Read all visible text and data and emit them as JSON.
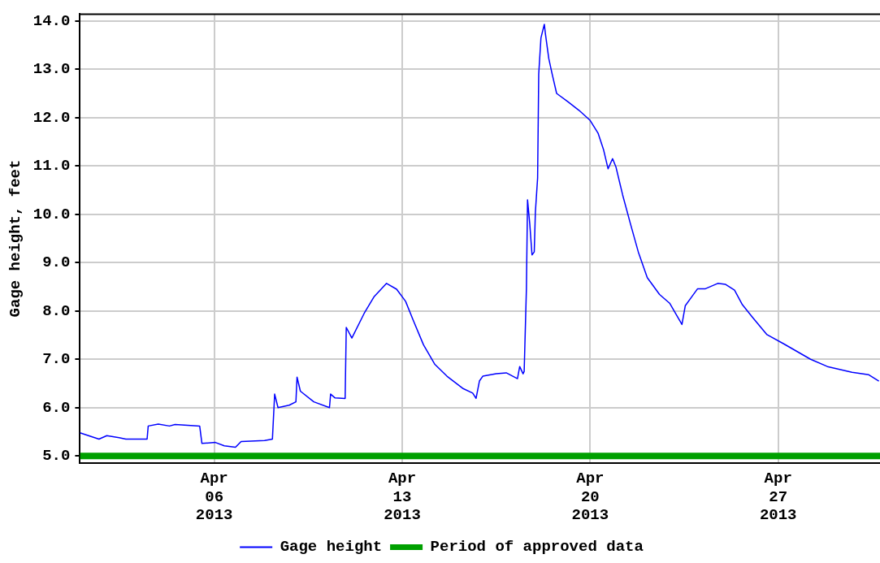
{
  "chart_data": {
    "type": "line",
    "ylabel": "Gage height, feet",
    "xlim": [
      "2013-04-01",
      "2013-04-30T19:00"
    ],
    "xticks": [
      {
        "value": "2013-04-06",
        "label": "Apr\n06\n2013"
      },
      {
        "value": "2013-04-13",
        "label": "Apr\n13\n2013"
      },
      {
        "value": "2013-04-20",
        "label": "Apr\n20\n2013"
      },
      {
        "value": "2013-04-27",
        "label": "Apr\n27\n2013"
      }
    ],
    "ylim": [
      4.86,
      14.14
    ],
    "yticks": [
      {
        "value": 5,
        "label": "5.0"
      },
      {
        "value": 6,
        "label": "6.0"
      },
      {
        "value": 7,
        "label": "7.0"
      },
      {
        "value": 8,
        "label": "8.0"
      },
      {
        "value": 9,
        "label": "9.0"
      },
      {
        "value": 10,
        "label": "10.0"
      },
      {
        "value": 11,
        "label": "11.0"
      },
      {
        "value": 12,
        "label": "12.0"
      },
      {
        "value": 13,
        "label": "13.0"
      },
      {
        "value": 14,
        "label": "14.0"
      }
    ],
    "grid": true,
    "legend": "bottom",
    "marker": "none",
    "series": [
      {
        "name": "Gage height",
        "color": "#0000ff",
        "x": [
          "2013-04-01T00:00",
          "2013-04-01T17:00",
          "2013-04-02T00:00",
          "2013-04-02T11:00",
          "2013-04-02T17:00",
          "2013-04-03T12:00",
          "2013-04-03T13:00",
          "2013-04-03T22:00",
          "2013-04-04T08:00",
          "2013-04-04T13:00",
          "2013-04-05T03:00",
          "2013-04-05T11:00",
          "2013-04-05T13:00",
          "2013-04-06T01:00",
          "2013-04-06T09:00",
          "2013-04-06T19:00",
          "2013-04-07T00:00",
          "2013-04-07T21:00",
          "2013-04-08T04:00",
          "2013-04-08T06:00",
          "2013-04-08T09:00",
          "2013-04-08T19:00",
          "2013-04-09T01:00",
          "2013-04-09T02:00",
          "2013-04-09T05:00",
          "2013-04-09T17:00",
          "2013-04-10T07:00",
          "2013-04-10T08:00",
          "2013-04-10T12:00",
          "2013-04-10T21:00",
          "2013-04-10T22:00",
          "2013-04-11T03:00",
          "2013-04-11T14:00",
          "2013-04-11T23:00",
          "2013-04-12T10:00",
          "2013-04-12T19:00",
          "2013-04-13T03:00",
          "2013-04-13T10:00",
          "2013-04-13T19:00",
          "2013-04-14T05:00",
          "2013-04-14T16:00",
          "2013-04-15T06:00",
          "2013-04-15T15:00",
          "2013-04-15T18:00",
          "2013-04-15T21:00",
          "2013-04-16T00:00",
          "2013-04-16T12:00",
          "2013-04-16T21:00",
          "2013-04-17T07:00",
          "2013-04-17T09:00",
          "2013-04-17T12:00",
          "2013-04-17T13:00",
          "2013-04-17T15:00",
          "2013-04-17T16:00",
          "2013-04-17T18:00",
          "2013-04-17T20:00",
          "2013-04-17T22:00",
          "2013-04-17T23:00",
          "2013-04-18T01:00",
          "2013-04-18T02:00",
          "2013-04-18T04:00",
          "2013-04-18T07:00",
          "2013-04-18T08:00",
          "2013-04-18T11:00",
          "2013-04-18T14:00",
          "2013-04-18T18:00",
          "2013-04-19T04:00",
          "2013-04-19T14:00",
          "2013-04-20T00:00",
          "2013-04-20T07:00",
          "2013-04-20T12:00",
          "2013-04-20T16:00",
          "2013-04-20T20:00",
          "2013-04-20T23:00",
          "2013-04-21T05:00",
          "2013-04-21T12:00",
          "2013-04-21T19:00",
          "2013-04-22T03:00",
          "2013-04-22T14:00",
          "2013-04-22T23:00",
          "2013-04-23T10:00",
          "2013-04-23T13:00",
          "2013-04-23T19:00",
          "2013-04-24T00:00",
          "2013-04-24T07:00",
          "2013-04-24T18:00",
          "2013-04-25T01:00",
          "2013-04-25T09:00",
          "2013-04-25T16:00",
          "2013-04-26T01:00",
          "2013-04-26T14:00",
          "2013-04-27T05:00",
          "2013-04-28T05:00",
          "2013-04-28T20:00",
          "2013-04-29T18:00",
          "2013-04-30T09:00",
          "2013-04-30T18:00"
        ],
        "values": [
          5.48,
          5.35,
          5.42,
          5.38,
          5.35,
          5.35,
          5.62,
          5.66,
          5.62,
          5.65,
          5.63,
          5.62,
          5.26,
          5.28,
          5.21,
          5.18,
          5.3,
          5.32,
          5.35,
          6.28,
          6.0,
          6.05,
          6.12,
          6.63,
          6.34,
          6.12,
          6.0,
          6.28,
          6.2,
          6.19,
          7.66,
          7.44,
          7.95,
          8.3,
          8.57,
          8.45,
          8.2,
          7.8,
          7.3,
          6.9,
          6.65,
          6.4,
          6.3,
          6.19,
          6.55,
          6.65,
          6.7,
          6.72,
          6.6,
          6.85,
          6.7,
          6.75,
          8.46,
          10.3,
          9.8,
          9.16,
          9.22,
          10.04,
          10.75,
          12.9,
          13.65,
          13.93,
          13.73,
          13.22,
          12.9,
          12.5,
          12.33,
          12.15,
          11.94,
          11.68,
          11.33,
          10.94,
          11.15,
          10.98,
          10.4,
          9.8,
          9.22,
          8.69,
          8.34,
          8.16,
          7.72,
          8.11,
          8.3,
          8.46,
          8.46,
          8.57,
          8.55,
          8.43,
          8.13,
          7.87,
          7.51,
          7.32,
          7.0,
          6.85,
          6.73,
          6.68,
          6.55
        ]
      },
      {
        "name": "Period of approved data",
        "color": "#00a000",
        "x": [
          "2013-04-01T00:00",
          "2013-04-30T19:00"
        ],
        "values": [
          5.0,
          5.0
        ]
      }
    ]
  }
}
